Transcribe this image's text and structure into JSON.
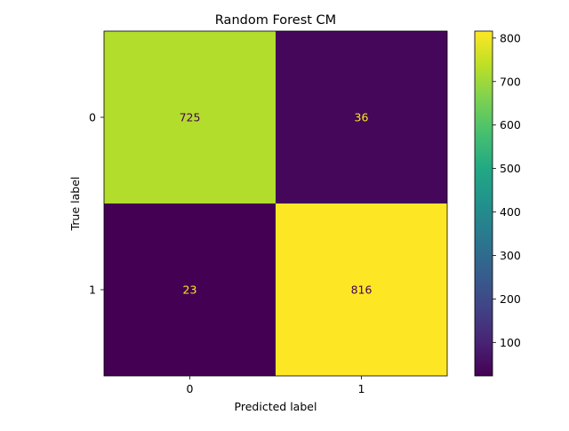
{
  "chart_data": {
    "type": "heatmap",
    "title": "Random Forest CM",
    "xlabel": "Predicted label",
    "ylabel": "True label",
    "x_categories": [
      "0",
      "1"
    ],
    "y_categories": [
      "0",
      "1"
    ],
    "matrix": [
      [
        725,
        36
      ],
      [
        23,
        816
      ]
    ],
    "colormap": "viridis",
    "colorbar": {
      "range": [
        23,
        816
      ],
      "ticks": [
        100,
        200,
        300,
        400,
        500,
        600,
        700,
        800
      ]
    },
    "colors": {
      "low_text": "#fde725",
      "high_text": "#440154"
    }
  }
}
